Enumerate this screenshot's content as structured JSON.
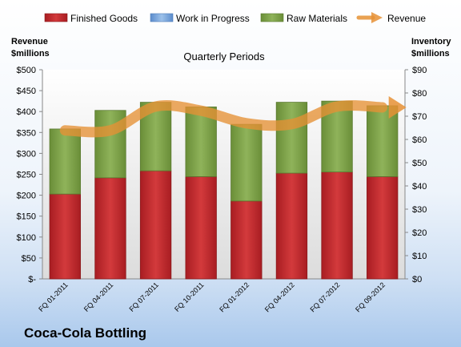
{
  "chart_data": {
    "type": "bar",
    "stacked": true,
    "title": "Quarterly Periods",
    "company": "Coca-Cola Bottling",
    "categories": [
      "FQ 01-2011",
      "FQ 04-2011",
      "FQ 07-2011",
      "FQ 10-2011",
      "FQ 01-2012",
      "FQ 04-2012",
      "FQ 07-2012",
      "FQ 09-2012"
    ],
    "left_axis": {
      "label_line1": "Revenue",
      "label_line2": "$millions",
      "ylim": [
        0,
        500
      ],
      "ticks": [
        "$-",
        "$50",
        "$100",
        "$150",
        "$200",
        "$250",
        "$300",
        "$350",
        "$400",
        "$450",
        "$500"
      ]
    },
    "right_axis": {
      "label_line1": "Inventory",
      "label_line2": "$millions",
      "ylim": [
        0,
        90
      ],
      "ticks": [
        "$0",
        "$10",
        "$20",
        "$30",
        "$40",
        "$50",
        "$60",
        "$70",
        "$80",
        "$90"
      ]
    },
    "series": [
      {
        "name": "Finished Goods",
        "axis": "right",
        "color": "#c0282c",
        "values": [
          36.5,
          43.5,
          46.5,
          44,
          33.5,
          45.5,
          46,
          44
        ]
      },
      {
        "name": "Work in Progress",
        "axis": "right",
        "color": "#6f9fd8",
        "values": [
          0,
          0,
          0,
          0,
          0,
          0,
          0,
          0
        ]
      },
      {
        "name": "Raw Materials",
        "axis": "right",
        "color": "#7ea34a",
        "values": [
          28,
          29,
          29.5,
          30,
          33,
          30.5,
          30.5,
          30.5
        ]
      },
      {
        "name": "Revenue",
        "axis": "left",
        "type": "line",
        "color": "#e69135",
        "values": [
          355,
          355,
          412,
          402,
          372,
          370,
          412,
          410
        ]
      }
    ],
    "legend_position": "top",
    "grid": false
  }
}
